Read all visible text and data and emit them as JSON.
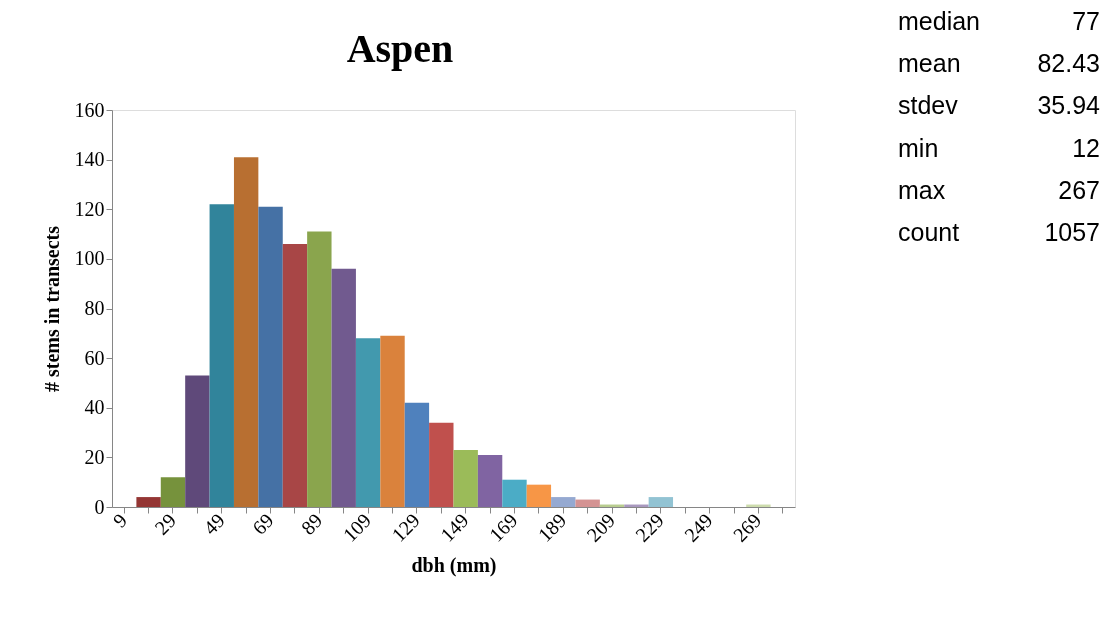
{
  "chart_data": {
    "type": "bar",
    "title": "Aspen",
    "xlabel": "dbh (mm)",
    "ylabel": "# stems in transects",
    "categories": [
      "9",
      null,
      "29",
      null,
      "49",
      null,
      "69",
      null,
      "89",
      null,
      "109",
      null,
      "129",
      null,
      "149",
      null,
      "169",
      null,
      "189",
      null,
      "209",
      null,
      "229",
      null,
      "249",
      null,
      "269",
      null
    ],
    "values": [
      0,
      4,
      12,
      53,
      122,
      141,
      121,
      106,
      111,
      96,
      68,
      69,
      42,
      34,
      23,
      21,
      11,
      9,
      4,
      3,
      1,
      1,
      4,
      0,
      0,
      0,
      1,
      0
    ],
    "colors": [
      "#ffffff",
      "#943634",
      "#76923c",
      "#5f497a",
      "#31849b",
      "#b86f31",
      "#4571a5",
      "#a84646",
      "#8aa54d",
      "#715a8f",
      "#4299ae",
      "#da823c",
      "#4f81bd",
      "#c0504d",
      "#9bbb59",
      "#8064a2",
      "#4bacc6",
      "#f79646",
      "#95a9d1",
      "#d49393",
      "#b8cc8f",
      "#a898be",
      "#92c3d3",
      "#f9c09a",
      "#b0c4e0",
      "#e0a8a7",
      "#cddcad",
      "#bdb0cf"
    ],
    "ylim": [
      0,
      160
    ],
    "yticks": [
      0,
      20,
      40,
      60,
      80,
      100,
      120,
      140,
      160
    ],
    "grid": false,
    "annotations": [
      "median 77",
      "mean 82.43",
      "stdev 35.94",
      "min 12",
      "max 267",
      "count 1057"
    ]
  }
}
